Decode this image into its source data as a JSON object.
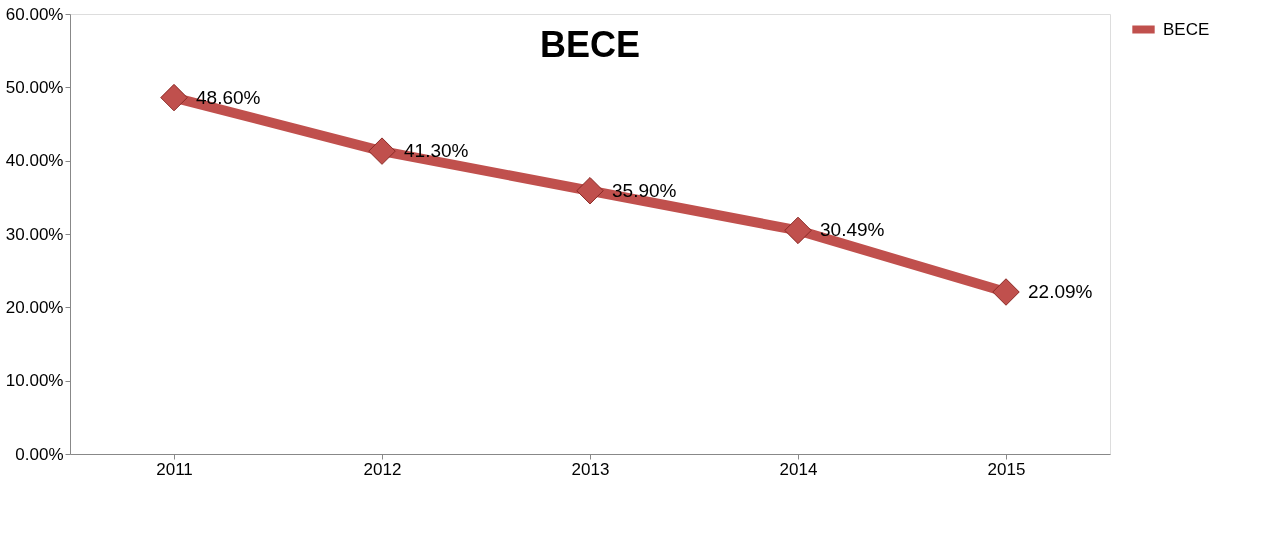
{
  "chart_data": {
    "type": "line",
    "title": "BECE",
    "categories": [
      "2011",
      "2012",
      "2013",
      "2014",
      "2015"
    ],
    "series": [
      {
        "name": "BECE",
        "color": "#c0504d",
        "values": [
          48.6,
          41.3,
          35.9,
          30.49,
          22.09
        ]
      }
    ],
    "value_labels": [
      "48.60%",
      "41.30%",
      "35.90%",
      "30.49%",
      "22.09%"
    ],
    "ylim": [
      0,
      60
    ],
    "yticks": [
      {
        "value": 0,
        "label": "0.00%"
      },
      {
        "value": 10,
        "label": "10.00%"
      },
      {
        "value": 20,
        "label": "20.00%"
      },
      {
        "value": 30,
        "label": "30.00%"
      },
      {
        "value": 40,
        "label": "40.00%"
      },
      {
        "value": 50,
        "label": "50.00%"
      },
      {
        "value": 60,
        "label": "60.00%"
      }
    ],
    "grid": false,
    "legend": "right",
    "marker": "diamond",
    "line_style": "solid"
  }
}
